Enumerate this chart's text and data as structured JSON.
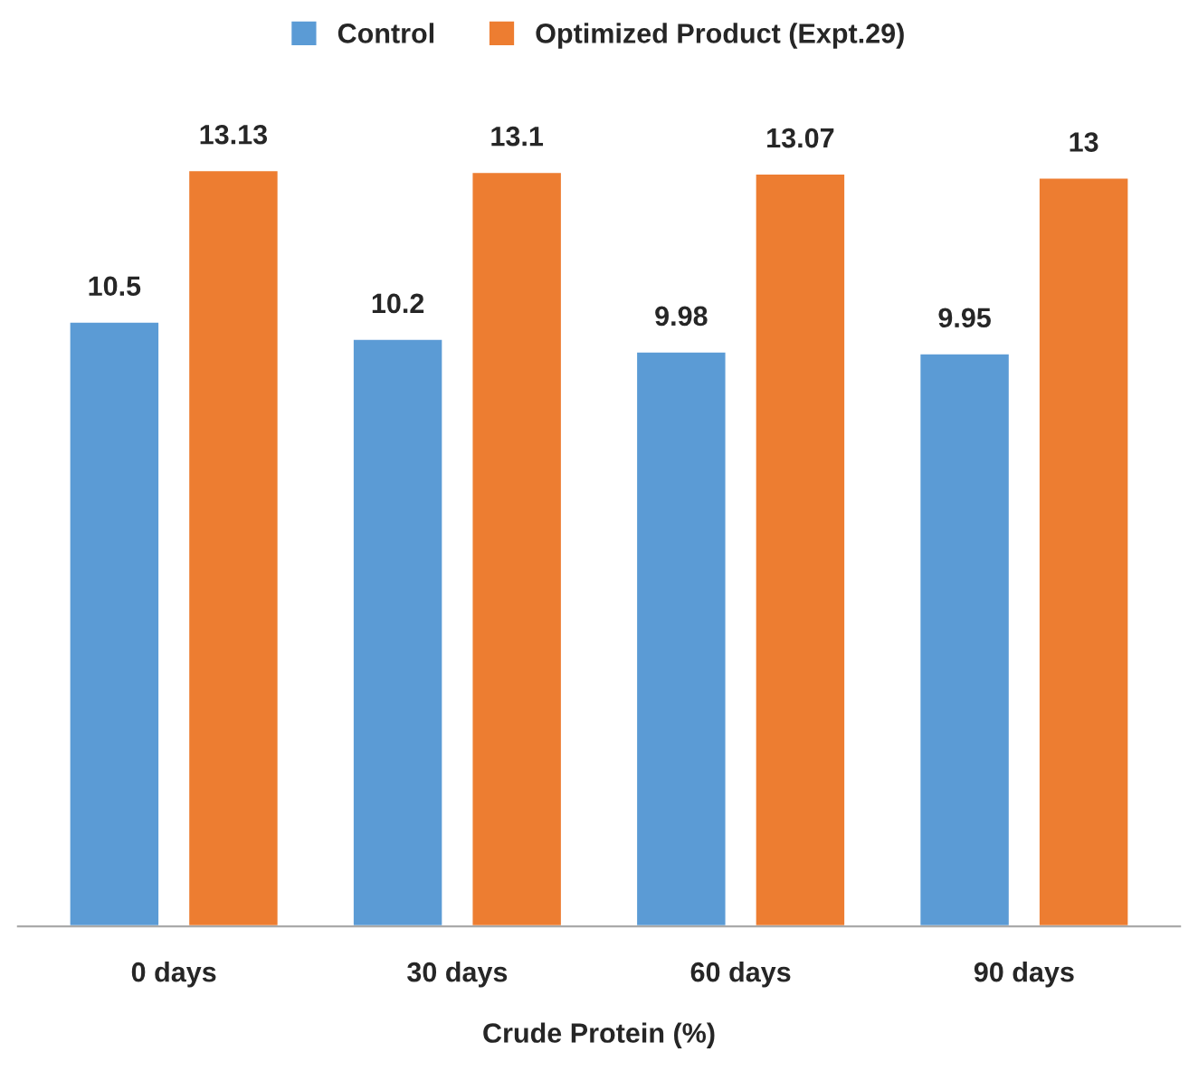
{
  "chart_data": {
    "type": "bar",
    "xlabel": "Crude Protein (%)",
    "categories": [
      "0 days",
      "30 days",
      "60 days",
      "90 days"
    ],
    "series": [
      {
        "name": "Control",
        "color": "#5b9bd5",
        "values": [
          10.5,
          10.2,
          9.98,
          9.95
        ]
      },
      {
        "name": "Optimized Product (Expt.29)",
        "color": "#ed7d31",
        "values": [
          13.13,
          13.1,
          13.07,
          13
        ]
      }
    ],
    "ylim": [
      0,
      15.8
    ],
    "data_labels": true,
    "legend": "top",
    "grid": false
  }
}
